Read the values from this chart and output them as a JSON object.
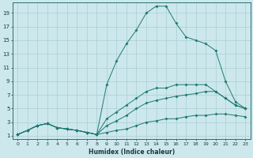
{
  "xlabel": "Humidex (Indice chaleur)",
  "bg_color": "#cce8ec",
  "grid_color": "#aacdd4",
  "line_color": "#1e7a72",
  "xlim": [
    -0.5,
    23.5
  ],
  "ylim": [
    0.5,
    20.5
  ],
  "xticks": [
    0,
    1,
    2,
    3,
    4,
    5,
    6,
    7,
    8,
    9,
    10,
    11,
    12,
    13,
    14,
    15,
    16,
    17,
    18,
    19,
    20,
    21,
    22,
    23
  ],
  "yticks": [
    1,
    3,
    5,
    7,
    9,
    11,
    13,
    15,
    17,
    19
  ],
  "line1_x": [
    0,
    1,
    2,
    3,
    4,
    5,
    6,
    7,
    8,
    9,
    10,
    11,
    12,
    13,
    14,
    15,
    16,
    17,
    18,
    19,
    20,
    21,
    22,
    23
  ],
  "line1_y": [
    1.2,
    1.8,
    2.5,
    2.8,
    2.2,
    2.0,
    1.8,
    1.5,
    1.2,
    8.5,
    12.0,
    14.5,
    16.5,
    19.0,
    20.0,
    20.0,
    17.5,
    15.5,
    15.0,
    14.5,
    13.5,
    9.0,
    6.0,
    5.0
  ],
  "line2_x": [
    0,
    1,
    2,
    3,
    4,
    5,
    6,
    7,
    8,
    9,
    10,
    11,
    12,
    13,
    14,
    15,
    16,
    17,
    18,
    19,
    20,
    21,
    22,
    23
  ],
  "line2_y": [
    1.2,
    1.8,
    2.5,
    2.8,
    2.2,
    2.0,
    1.8,
    1.5,
    1.2,
    3.5,
    4.5,
    5.5,
    6.5,
    7.5,
    8.0,
    8.0,
    8.5,
    8.5,
    8.5,
    8.5,
    7.5,
    6.5,
    5.5,
    5.0
  ],
  "line3_x": [
    0,
    1,
    2,
    3,
    4,
    5,
    6,
    7,
    8,
    9,
    10,
    11,
    12,
    13,
    14,
    15,
    16,
    17,
    18,
    19,
    20,
    21,
    22,
    23
  ],
  "line3_y": [
    1.2,
    1.8,
    2.5,
    2.8,
    2.2,
    2.0,
    1.8,
    1.5,
    1.2,
    2.5,
    3.2,
    4.0,
    5.0,
    5.8,
    6.2,
    6.5,
    6.8,
    7.0,
    7.2,
    7.5,
    7.5,
    6.5,
    5.5,
    5.0
  ],
  "line4_x": [
    0,
    1,
    2,
    3,
    4,
    5,
    6,
    7,
    8,
    9,
    10,
    11,
    12,
    13,
    14,
    15,
    16,
    17,
    18,
    19,
    20,
    21,
    22,
    23
  ],
  "line4_y": [
    1.2,
    1.8,
    2.5,
    2.8,
    2.2,
    2.0,
    1.8,
    1.5,
    1.2,
    1.5,
    1.8,
    2.0,
    2.5,
    3.0,
    3.2,
    3.5,
    3.5,
    3.8,
    4.0,
    4.0,
    4.2,
    4.2,
    4.0,
    3.8
  ]
}
